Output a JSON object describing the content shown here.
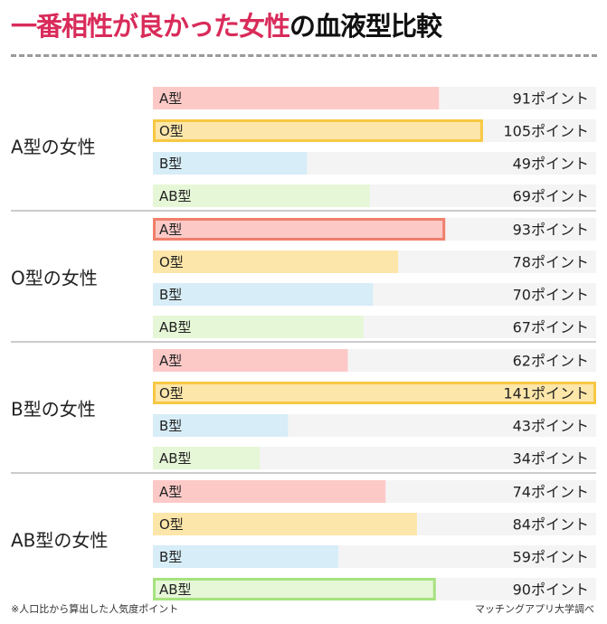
{
  "title": {
    "highlight": "一番相性が良かった女性",
    "rest": "の血液型比較"
  },
  "footer": {
    "note": "※人口比から算出した人気度ポイント",
    "source": "マッチングアプリ大学調べ"
  },
  "colors": {
    "A": "#fdc9c7",
    "O": "#fde6a9",
    "B": "#d7edf8",
    "AB": "#e6f7d7",
    "track": "#f4f4f4",
    "highlight_A": "#f07f6c",
    "highlight_O": "#f7c843",
    "highlight_AB": "#a6e27f"
  },
  "chart_data": {
    "type": "bar",
    "orientation": "horizontal",
    "unit_suffix": "ポイント",
    "xlim": [
      0,
      141
    ],
    "grid": false,
    "groups": [
      {
        "label": "A型の女性",
        "bars": [
          {
            "category": "A型",
            "key": "A",
            "value": 91,
            "value_label": "91ポイント",
            "highlight": false
          },
          {
            "category": "O型",
            "key": "O",
            "value": 105,
            "value_label": "105ポイント",
            "highlight": true
          },
          {
            "category": "B型",
            "key": "B",
            "value": 49,
            "value_label": "49ポイント",
            "highlight": false
          },
          {
            "category": "AB型",
            "key": "AB",
            "value": 69,
            "value_label": "69ポイント",
            "highlight": false
          }
        ]
      },
      {
        "label": "O型の女性",
        "bars": [
          {
            "category": "A型",
            "key": "A",
            "value": 93,
            "value_label": "93ポイント",
            "highlight": true
          },
          {
            "category": "O型",
            "key": "O",
            "value": 78,
            "value_label": "78ポイント",
            "highlight": false
          },
          {
            "category": "B型",
            "key": "B",
            "value": 70,
            "value_label": "70ポイント",
            "highlight": false
          },
          {
            "category": "AB型",
            "key": "AB",
            "value": 67,
            "value_label": "67ポイント",
            "highlight": false
          }
        ]
      },
      {
        "label": "B型の女性",
        "bars": [
          {
            "category": "A型",
            "key": "A",
            "value": 62,
            "value_label": "62ポイント",
            "highlight": false
          },
          {
            "category": "O型",
            "key": "O",
            "value": 141,
            "value_label": "141ポイント",
            "highlight": true
          },
          {
            "category": "B型",
            "key": "B",
            "value": 43,
            "value_label": "43ポイント",
            "highlight": false
          },
          {
            "category": "AB型",
            "key": "AB",
            "value": 34,
            "value_label": "34ポイント",
            "highlight": false
          }
        ]
      },
      {
        "label": "AB型の女性",
        "bars": [
          {
            "category": "A型",
            "key": "A",
            "value": 74,
            "value_label": "74ポイント",
            "highlight": false
          },
          {
            "category": "O型",
            "key": "O",
            "value": 84,
            "value_label": "84ポイント",
            "highlight": false
          },
          {
            "category": "B型",
            "key": "B",
            "value": 59,
            "value_label": "59ポイント",
            "highlight": false
          },
          {
            "category": "AB型",
            "key": "AB",
            "value": 90,
            "value_label": "90ポイント",
            "highlight": true
          }
        ]
      }
    ]
  }
}
